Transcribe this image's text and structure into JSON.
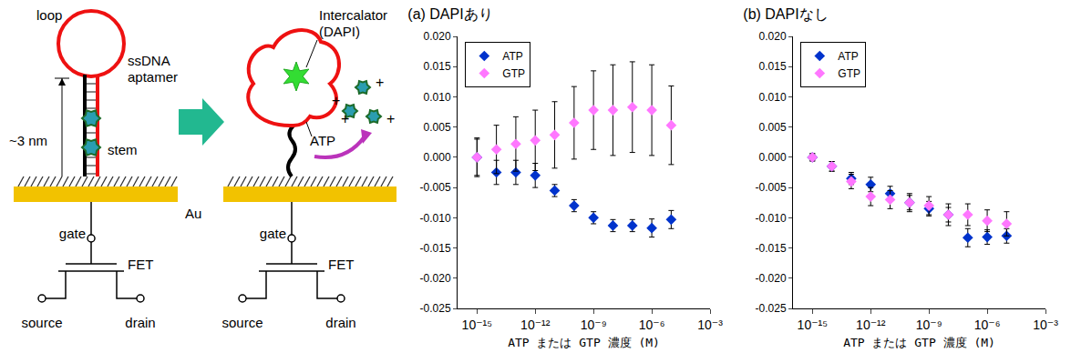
{
  "diagram": {
    "labels": {
      "loop": "loop",
      "aptamer": "ssDNA aptamer",
      "intercalator": "Intercalator (DAPI)",
      "height": "~3 nm",
      "stem": "stem",
      "target": "ATP",
      "gate": "gate",
      "fet": "FET",
      "electrode": "Au",
      "source": "source",
      "drain": "drain",
      "charge": "+"
    }
  },
  "chart_data": [
    {
      "type": "scatter",
      "title": "(a) DAPIあり",
      "x_label": "ATP または GTP 濃度 (M)",
      "x": [
        1e-15,
        1e-14,
        1e-13,
        1e-12,
        1e-11,
        1e-10,
        1e-09,
        1e-08,
        1e-07,
        1e-06,
        1e-05
      ],
      "series": [
        {
          "name": "ATP",
          "color": "#0033cc",
          "marker": "diamond",
          "values": [
            0,
            -0.0025,
            -0.0025,
            -0.003,
            -0.0055,
            -0.008,
            -0.01,
            -0.0113,
            -0.0113,
            -0.0117,
            -0.0103
          ],
          "errors": [
            0.003,
            0.002,
            0.002,
            0.002,
            0.001,
            0.001,
            0.001,
            0.001,
            0.001,
            0.0015,
            0.0015
          ]
        },
        {
          "name": "GTP",
          "color": "#ff77ff",
          "marker": "diamond",
          "values": [
            0,
            0.0013,
            0.0022,
            0.0028,
            0.0037,
            0.0057,
            0.0078,
            0.0078,
            0.0083,
            0.0078,
            0.0053
          ],
          "errors": [
            0.0032,
            0.004,
            0.0045,
            0.005,
            0.0055,
            0.006,
            0.0065,
            0.0075,
            0.0075,
            0.0075,
            0.0065
          ]
        }
      ],
      "log": "x",
      "xlim": [
        1e-16,
        0.001
      ],
      "xticks": [
        {
          "value": 1e-15,
          "label": "10⁻¹⁵"
        },
        {
          "value": 1e-12,
          "label": "10⁻¹²"
        },
        {
          "value": 1e-09,
          "label": "10⁻⁹"
        },
        {
          "value": 1e-06,
          "label": "10⁻⁶"
        },
        {
          "value": 0.001,
          "label": "10⁻³"
        }
      ],
      "ylim": [
        -0.025,
        0.02
      ],
      "yticks": [
        -0.025,
        {
          "value": -0.02,
          "label": "-0.020"
        },
        -0.015,
        {
          "value": -0.01,
          "label": "-0.010"
        },
        -0.005,
        {
          "value": 0,
          "label": "0.000"
        },
        0.005,
        {
          "value": 0.01,
          "label": "0.010"
        },
        0.015,
        {
          "value": 0.02,
          "label": "0.020"
        }
      ],
      "grid": false,
      "legend": "upper left"
    },
    {
      "type": "scatter",
      "title": "(b) DAPIなし",
      "x_label": "ATP または GTP 濃度 (M)",
      "x": [
        1e-15,
        1e-14,
        1e-13,
        1e-12,
        1e-11,
        1e-10,
        1e-09,
        1e-08,
        1e-07,
        1e-06,
        1e-05
      ],
      "series": [
        {
          "name": "ATP",
          "color": "#0033cc",
          "marker": "diamond",
          "values": [
            0,
            -0.0015,
            -0.0035,
            -0.0045,
            -0.006,
            -0.0075,
            -0.0085,
            -0.0095,
            -0.0133,
            -0.0132,
            -0.013
          ],
          "errors": [
            0.0006,
            0.0008,
            0.001,
            0.0012,
            0.0012,
            0.0012,
            0.0012,
            0.0012,
            0.0015,
            0.0012,
            0.0012
          ]
        },
        {
          "name": "GTP",
          "color": "#ff77ff",
          "marker": "diamond",
          "values": [
            0,
            -0.0015,
            -0.004,
            -0.0065,
            -0.007,
            -0.0075,
            -0.008,
            -0.0095,
            -0.0095,
            -0.0105,
            -0.011
          ],
          "errors": [
            0.0006,
            0.0008,
            0.0012,
            0.0015,
            0.0015,
            0.0015,
            0.0015,
            0.0018,
            0.0018,
            0.0018,
            0.002
          ]
        }
      ],
      "log": "x",
      "xlim": [
        1e-16,
        0.001
      ],
      "xticks": [
        {
          "value": 1e-15,
          "label": "10⁻¹⁵"
        },
        {
          "value": 1e-12,
          "label": "10⁻¹²"
        },
        {
          "value": 1e-09,
          "label": "10⁻⁹"
        },
        {
          "value": 1e-06,
          "label": "10⁻⁶"
        },
        {
          "value": 0.001,
          "label": "10⁻³"
        }
      ],
      "ylim": [
        -0.025,
        0.02
      ],
      "yticks": [
        -0.025,
        {
          "value": -0.02,
          "label": "-0.020"
        },
        -0.015,
        {
          "value": -0.01,
          "label": "-0.010"
        },
        -0.005,
        {
          "value": 0,
          "label": "0.000"
        },
        0.005,
        {
          "value": 0.01,
          "label": "0.010"
        },
        0.015,
        {
          "value": 0.02,
          "label": "0.020"
        }
      ],
      "grid": false,
      "legend": "upper left"
    }
  ]
}
